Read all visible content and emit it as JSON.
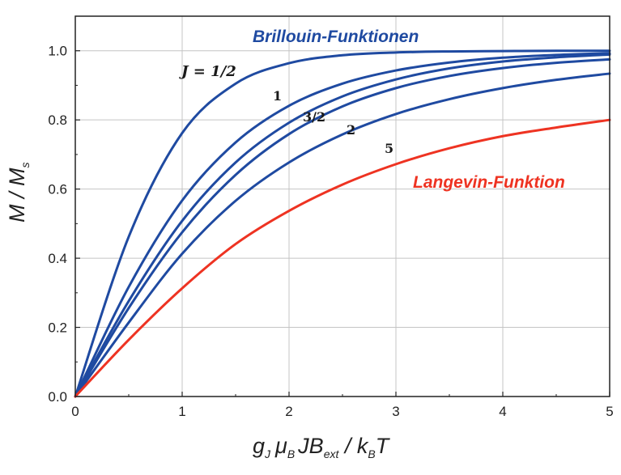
{
  "chart_data": {
    "type": "line",
    "xlabel": "g_J μ_B J B_ext / k_B T",
    "ylabel": "M / M_s",
    "xlim": [
      0,
      5
    ],
    "ylim": [
      0,
      1.1
    ],
    "grid": true,
    "x_ticks": [
      "0",
      "1",
      "2",
      "3",
      "4",
      "5"
    ],
    "y_ticks": [
      "0.0",
      "0.2",
      "0.4",
      "0.6",
      "0.8",
      "1.0"
    ],
    "x": [
      0,
      0.5,
      1,
      1.5,
      2,
      2.5,
      3,
      3.5,
      4,
      4.5,
      5
    ],
    "annotations": {
      "brillouin_title": "Brillouin-Funktionen",
      "langevin_title": "Langevin-Funktion",
      "j_half": "J = 1/2",
      "j_one": "1",
      "j_three_half": "3/2",
      "j_two": "2",
      "j_five": "5"
    },
    "series": [
      {
        "name": "J = 1/2",
        "color": "#1f4aa1",
        "values": [
          0,
          0.462,
          0.762,
          0.905,
          0.964,
          0.987,
          0.995,
          0.998,
          0.999,
          1.0,
          1.0
        ]
      },
      {
        "name": "1",
        "color": "#1f4aa1",
        "values": [
          0,
          0.317,
          0.567,
          0.735,
          0.841,
          0.905,
          0.943,
          0.966,
          0.98,
          0.988,
          0.993
        ]
      },
      {
        "name": "3/2",
        "color": "#1f4aa1",
        "values": [
          0,
          0.276,
          0.508,
          0.677,
          0.792,
          0.868,
          0.917,
          0.949,
          0.969,
          0.981,
          0.989
        ]
      },
      {
        "name": "2",
        "color": "#1f4aa1",
        "values": [
          0,
          0.256,
          0.475,
          0.641,
          0.759,
          0.839,
          0.892,
          0.927,
          0.95,
          0.965,
          0.975
        ]
      },
      {
        "name": "5",
        "color": "#1f4aa1",
        "values": [
          0,
          0.214,
          0.413,
          0.566,
          0.677,
          0.758,
          0.817,
          0.86,
          0.892,
          0.916,
          0.934
        ]
      },
      {
        "name": "Langevin-Funktion",
        "color": "#ee3322",
        "values": [
          0,
          0.164,
          0.313,
          0.441,
          0.537,
          0.613,
          0.672,
          0.718,
          0.753,
          0.778,
          0.8
        ]
      }
    ]
  }
}
